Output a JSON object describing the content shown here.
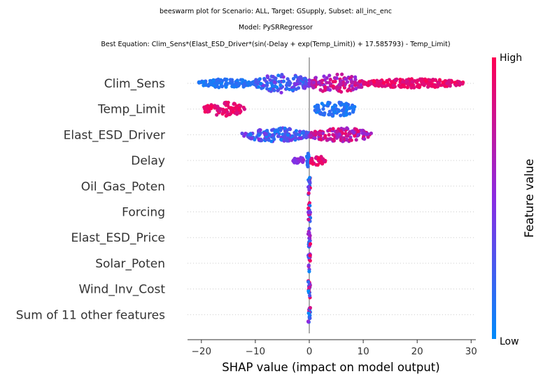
{
  "titles": {
    "line1": "beeswarm plot for Scenario: ALL, Target: GSupply, Subset: all_inc_enc",
    "line2": "Model: PySRRegressor",
    "line3": "Best Equation: Clim_Sens*(Elast_ESD_Driver*(sin(-Delay + exp(Temp_Limit)) + 17.585793) - Temp_Limit)"
  },
  "colorbar": {
    "high_label": "High",
    "low_label": "Low",
    "title": "Feature value",
    "color_low": "#008bfb",
    "color_mid": "#8a2be2",
    "color_high": "#ff0052"
  },
  "chart_data": {
    "type": "scatter",
    "subtype": "beeswarm",
    "xlabel": "SHAP value (impact on model output)",
    "xlim": [
      -22.5,
      30.5
    ],
    "xticks": [
      -20,
      -10,
      0,
      10,
      20,
      30
    ],
    "xtick_labels": [
      "−20",
      "−10",
      "0",
      "10",
      "20",
      "30"
    ],
    "grid": false,
    "features": [
      {
        "name": "Clim_Sens",
        "segments": [
          {
            "from": -20.5,
            "to": -10,
            "feature_value": "low",
            "spread": 0.35
          },
          {
            "from": -10,
            "to": 0,
            "feature_value": "low-mid",
            "spread": 0.75
          },
          {
            "from": 0,
            "to": 10,
            "feature_value": "mid-high",
            "spread": 0.75
          },
          {
            "from": 10,
            "to": 28.5,
            "feature_value": "high",
            "spread": 0.35
          }
        ]
      },
      {
        "name": "Temp_Limit",
        "segments": [
          {
            "from": -19.5,
            "to": -12,
            "feature_value": "high",
            "spread": 0.55
          },
          {
            "from": 1,
            "to": 8.5,
            "feature_value": "low",
            "spread": 0.6
          }
        ]
      },
      {
        "name": "Elast_ESD_Driver",
        "segments": [
          {
            "from": -12.5,
            "to": 0,
            "feature_value": "low-mid",
            "spread": 0.55
          },
          {
            "from": 0,
            "to": 11.5,
            "feature_value": "mid-high",
            "spread": 0.55
          }
        ]
      },
      {
        "name": "Delay",
        "segments": [
          {
            "from": -3,
            "to": -1,
            "feature_value": "mid",
            "spread": 0.3
          },
          {
            "from": -0.5,
            "to": 0,
            "feature_value": "low",
            "spread": 0.6
          },
          {
            "from": 0,
            "to": 3,
            "feature_value": "high",
            "spread": 0.35
          }
        ]
      },
      {
        "name": "Oil_Gas_Poten",
        "segments": [
          {
            "from": -0.2,
            "to": 0.2,
            "feature_value": "mixed",
            "spread": 0.75
          }
        ]
      },
      {
        "name": "Forcing",
        "segments": [
          {
            "from": -0.2,
            "to": 0.2,
            "feature_value": "mixed",
            "spread": 0.75
          }
        ]
      },
      {
        "name": "Elast_ESD_Price",
        "segments": [
          {
            "from": -0.2,
            "to": 0.2,
            "feature_value": "mixed",
            "spread": 0.75
          }
        ]
      },
      {
        "name": "Solar_Poten",
        "segments": [
          {
            "from": -0.2,
            "to": 0.2,
            "feature_value": "mixed",
            "spread": 0.75
          }
        ]
      },
      {
        "name": "Wind_Inv_Cost",
        "segments": [
          {
            "from": -0.2,
            "to": 0.2,
            "feature_value": "mixed",
            "spread": 0.75
          }
        ]
      },
      {
        "name": "Sum of 11 other features",
        "segments": [
          {
            "from": -0.2,
            "to": 0.2,
            "feature_value": "mixed",
            "spread": 0.75
          }
        ]
      }
    ]
  }
}
